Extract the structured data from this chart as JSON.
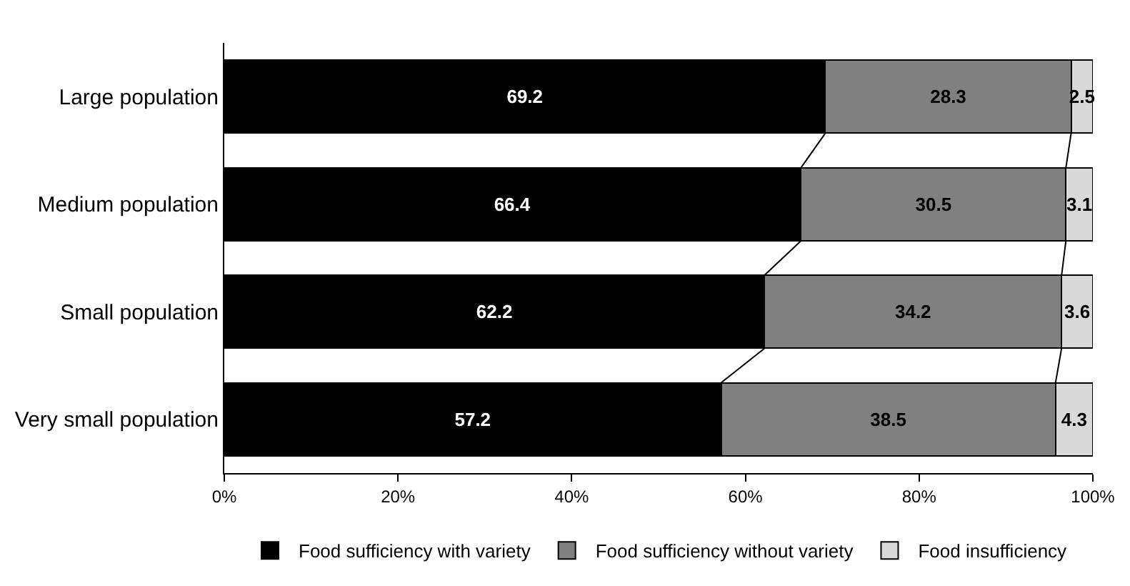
{
  "chart_data": {
    "type": "bar",
    "orientation": "horizontal",
    "stacked": true,
    "data_labels": true,
    "legend": "bottom",
    "categories": [
      "Large population",
      "Medium population",
      "Small population",
      "Very small population"
    ],
    "series": [
      {
        "name": "Food sufficiency with variety",
        "color": "#000000",
        "values": [
          69.2,
          66.4,
          62.2,
          57.2
        ]
      },
      {
        "name": "Food sufficiency without variety",
        "color": "#808080",
        "values": [
          28.3,
          30.5,
          34.2,
          38.5
        ]
      },
      {
        "name": "Food insufficiency",
        "color": "#d9d9d9",
        "values": [
          2.5,
          3.1,
          3.6,
          4.3
        ]
      }
    ],
    "xlim": [
      0,
      100
    ],
    "xticks": [
      {
        "value": 0,
        "label": "0%"
      },
      {
        "value": 20,
        "label": "20%"
      },
      {
        "value": 40,
        "label": "40%"
      },
      {
        "value": 60,
        "label": "60%"
      },
      {
        "value": 80,
        "label": "80%"
      },
      {
        "value": 100,
        "label": "100%"
      }
    ]
  }
}
